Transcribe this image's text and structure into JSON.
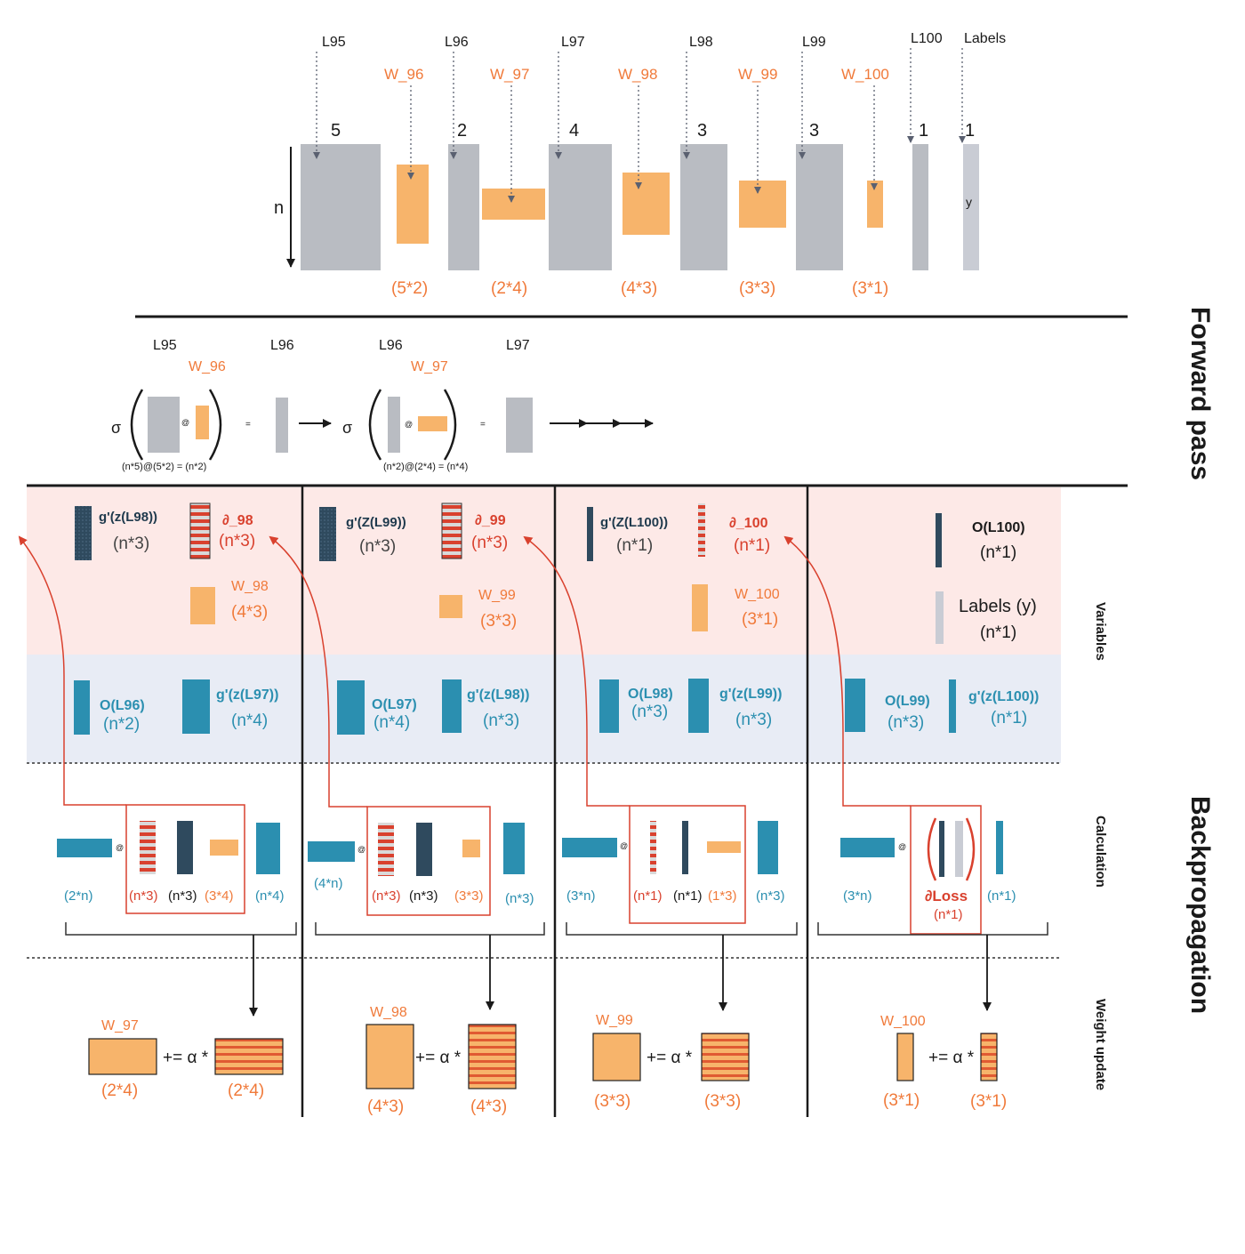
{
  "colors": {
    "layer_gray": "#b9bcc2",
    "weight_orange": "#f7b46b",
    "orange_text": "#f07a3a",
    "teal": "#2b8fb0",
    "navy": "#2f4a5e",
    "red": "#d9412e",
    "pink_band": "#fde9e7",
    "blue_band": "#e8ecf5"
  },
  "top": {
    "layers": [
      "L95",
      "L96",
      "L97",
      "L98",
      "L99",
      "L100",
      "Labels"
    ],
    "layer_sizes": [
      "5",
      "2",
      "4",
      "3",
      "3",
      "1",
      "1"
    ],
    "weights": [
      "W_96",
      "W_97",
      "W_98",
      "W_99",
      "W_100"
    ],
    "weight_dims": [
      "(5*2)",
      "(2*4)",
      "(4*3)",
      "(3*3)",
      "(3*1)"
    ],
    "n_label": "n",
    "y_label": "y"
  },
  "forward": {
    "eq1": {
      "left": "L95",
      "weight": "W_96",
      "right": "L96",
      "formula": "(n*5)@(5*2) = (n*2)"
    },
    "eq2": {
      "left": "L96",
      "weight": "W_97",
      "right": "L97",
      "formula": "(n*2)@(2*4) = (n*4)"
    },
    "sigma": "σ",
    "at": "@",
    "eq": "="
  },
  "side": {
    "forward_pass": "Forward pass",
    "backpropagation": "Backpropagation",
    "variables": "Variables",
    "calculation": "Calculation",
    "weight_update": "Weight update"
  },
  "columns": [
    {
      "var_top": [
        {
          "label": "g'(z(L98))",
          "dim": "(n*3)"
        },
        {
          "label": "∂_98",
          "dim": "(n*3)"
        }
      ],
      "weight": {
        "label": "W_98",
        "dim": "(4*3)"
      },
      "var_bottom": [
        {
          "label": "O(L96)",
          "dim": "(n*2)"
        },
        {
          "label": "g'(z(L97))",
          "dim": "(n*4)"
        }
      ],
      "calc": [
        "(2*n)",
        "(n*3)",
        "(n*3)",
        "(3*4)",
        "(n*4)"
      ],
      "update": {
        "label": "W_97",
        "dim": "(2*4)",
        "op": "+= α *",
        "grad_dim": "(2*4)"
      }
    },
    {
      "var_top": [
        {
          "label": "g'(Z(L99))",
          "dim": "(n*3)"
        },
        {
          "label": "∂_99",
          "dim": "(n*3)"
        }
      ],
      "weight": {
        "label": "W_99",
        "dim": "(3*3)"
      },
      "var_bottom": [
        {
          "label": "O(L97)",
          "dim": "(n*4)"
        },
        {
          "label": "g'(z(L98))",
          "dim": "(n*3)"
        }
      ],
      "calc": [
        "(4*n)",
        "(n*3)",
        "(n*3)",
        "(3*3)",
        "(n*3)"
      ],
      "update": {
        "label": "W_98",
        "dim": "(4*3)",
        "op": "+= α *",
        "grad_dim": "(4*3)"
      }
    },
    {
      "var_top": [
        {
          "label": "g'(Z(L100))",
          "dim": "(n*1)"
        },
        {
          "label": "∂_100",
          "dim": "(n*1)"
        }
      ],
      "weight": {
        "label": "W_100",
        "dim": "(3*1)"
      },
      "var_bottom": [
        {
          "label": "O(L98)",
          "dim": "(n*3)"
        },
        {
          "label": "g'(z(L99))",
          "dim": "(n*3)"
        }
      ],
      "calc": [
        "(3*n)",
        "(n*1)",
        "(n*1)",
        "(1*3)",
        "(n*3)"
      ],
      "update": {
        "label": "W_99",
        "dim": "(3*3)",
        "op": "+= α *",
        "grad_dim": "(3*3)"
      }
    },
    {
      "var_top": [
        {
          "label": "O(L100)",
          "dim": "(n*1)"
        },
        {
          "label": "Labels (y)",
          "dim": "(n*1)"
        }
      ],
      "var_bottom": [
        {
          "label": "O(L99)",
          "dim": "(n*3)"
        },
        {
          "label": "g'(z(L100))",
          "dim": "(n*1)"
        }
      ],
      "calc": [
        "(3*n)",
        "∂Loss",
        "(n*1)",
        "(n*1)"
      ],
      "update": {
        "label": "W_100",
        "dim": "(3*1)",
        "op": "+= α *",
        "grad_dim": "(3*1)"
      }
    }
  ]
}
